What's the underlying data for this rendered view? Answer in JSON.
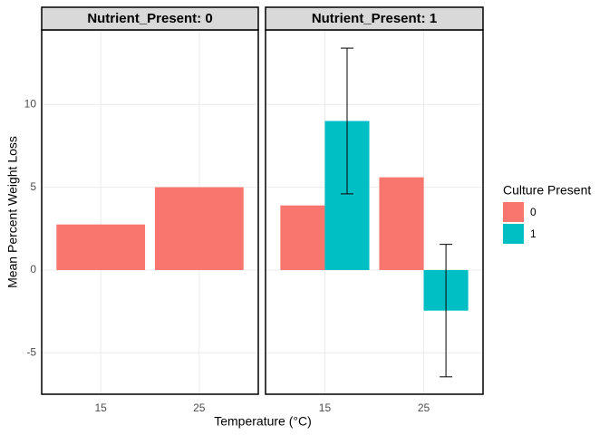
{
  "chart_data": {
    "type": "bar",
    "x_label": "Temperature (°C)",
    "y_label": "Mean Percent Weight Loss",
    "legend_title": "Culture Present",
    "series": [
      {
        "name": "0",
        "color": "#f8766d"
      },
      {
        "name": "1",
        "color": "#00bfc4"
      }
    ],
    "ylim": [
      -7.5,
      14.5
    ],
    "yticks": [
      -5,
      0,
      5,
      10
    ],
    "grid": true,
    "facets": [
      {
        "title": "Nutrient_Present: 0",
        "categories": [
          "15",
          "25"
        ],
        "series": [
          {
            "values": [
              2.75,
              5.0
            ]
          }
        ]
      },
      {
        "title": "Nutrient_Present: 1",
        "categories": [
          "15",
          "25"
        ],
        "series": [
          {
            "values": [
              3.9,
              5.6
            ]
          },
          {
            "values": [
              9.0,
              -2.45
            ],
            "errors": [
              4.4,
              4.0
            ]
          }
        ]
      }
    ]
  }
}
